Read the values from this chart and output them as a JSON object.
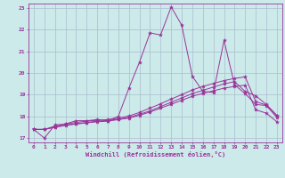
{
  "xlabel": "Windchill (Refroidissement éolien,°C)",
  "bg_color": "#cceaea",
  "grid_color": "#aabbcc",
  "line_color": "#993399",
  "xlim": [
    -0.5,
    23.5
  ],
  "ylim": [
    16.8,
    23.2
  ],
  "xticks": [
    0,
    1,
    2,
    3,
    4,
    5,
    6,
    7,
    8,
    9,
    10,
    11,
    12,
    13,
    14,
    15,
    16,
    17,
    18,
    19,
    20,
    21,
    22,
    23
  ],
  "yticks": [
    17,
    18,
    19,
    20,
    21,
    22,
    23
  ],
  "series": {
    "line_spiky": [
      17.4,
      17.0,
      17.6,
      17.65,
      17.8,
      17.8,
      17.85,
      17.8,
      18.0,
      19.3,
      20.5,
      21.85,
      21.75,
      23.05,
      22.2,
      19.85,
      19.15,
      19.1,
      21.5,
      19.45,
      19.05,
      18.55,
      18.5,
      17.95
    ],
    "line_diag1": [
      17.4,
      17.4,
      17.5,
      17.6,
      17.65,
      17.72,
      17.78,
      17.8,
      17.88,
      17.95,
      18.1,
      18.25,
      18.45,
      18.65,
      18.85,
      19.05,
      19.2,
      19.35,
      19.5,
      19.6,
      19.15,
      18.95,
      18.55,
      18.05
    ],
    "line_diag2": [
      17.4,
      17.4,
      17.55,
      17.65,
      17.72,
      17.78,
      17.82,
      17.85,
      17.92,
      18.02,
      18.18,
      18.38,
      18.58,
      18.8,
      19.0,
      19.22,
      19.38,
      19.52,
      19.65,
      19.75,
      19.82,
      18.68,
      18.52,
      18.02
    ],
    "line_diag3": [
      17.4,
      17.4,
      17.5,
      17.58,
      17.65,
      17.7,
      17.75,
      17.78,
      17.85,
      17.92,
      18.05,
      18.2,
      18.38,
      18.56,
      18.74,
      18.93,
      19.06,
      19.18,
      19.3,
      19.38,
      19.44,
      18.3,
      18.15,
      17.75
    ]
  }
}
